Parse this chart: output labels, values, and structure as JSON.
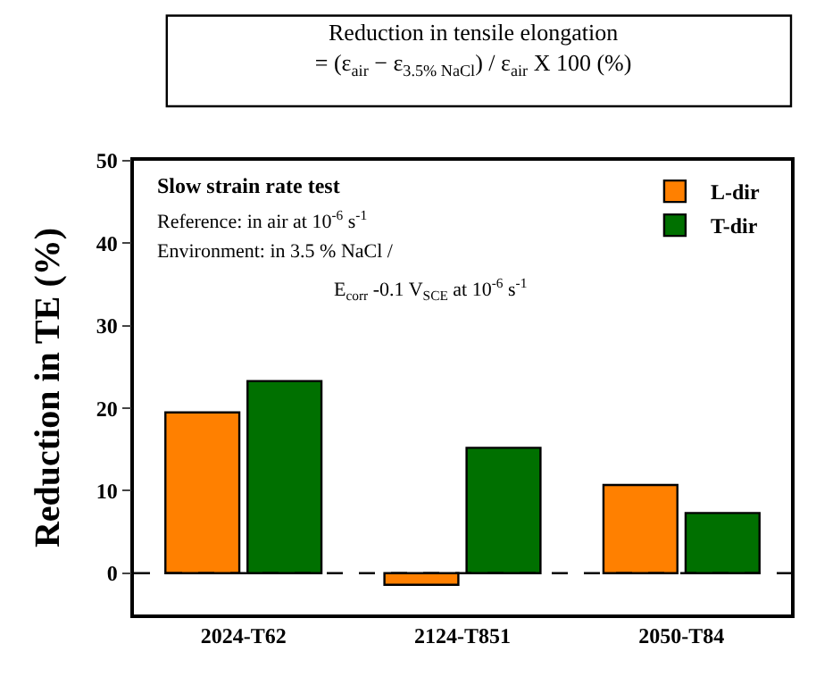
{
  "chart_data": {
    "type": "bar",
    "title": "Reduction in tensile elongation",
    "subtitle": "= (ε$_{air}$ − ε$_{3.5% NaCl}$) / ε$_{air}$ X 100 (%)",
    "ylabel": "Reduction in TE (%)",
    "categories": [
      "2024-T62",
      "2124-T851",
      "2050-T84"
    ],
    "series": [
      {
        "name": "L-dir",
        "color": "#ff8000",
        "values": [
          19.5,
          -1.4,
          10.7
        ]
      },
      {
        "name": "T-dir",
        "color": "#007000",
        "values": [
          23.3,
          15.2,
          7.3
        ]
      }
    ],
    "ylim": [
      -5,
      50
    ],
    "yticks": [
      0,
      10,
      20,
      30,
      40,
      50
    ],
    "annotations": [
      "Slow strain rate test",
      "Reference: in air at 10$^{-6}$ s$^{-1}$",
      "Environment: in 3.5 % NaCl /",
      "E$_{corr}$ -0.1 V$_{SCE}$ at 10$^{-6}$ s$^{-1}$"
    ],
    "ref_lines": [
      {
        "axis": "y",
        "value": 0,
        "color": "#000000",
        "line_style": "dashed"
      }
    ],
    "legend": "top right"
  }
}
